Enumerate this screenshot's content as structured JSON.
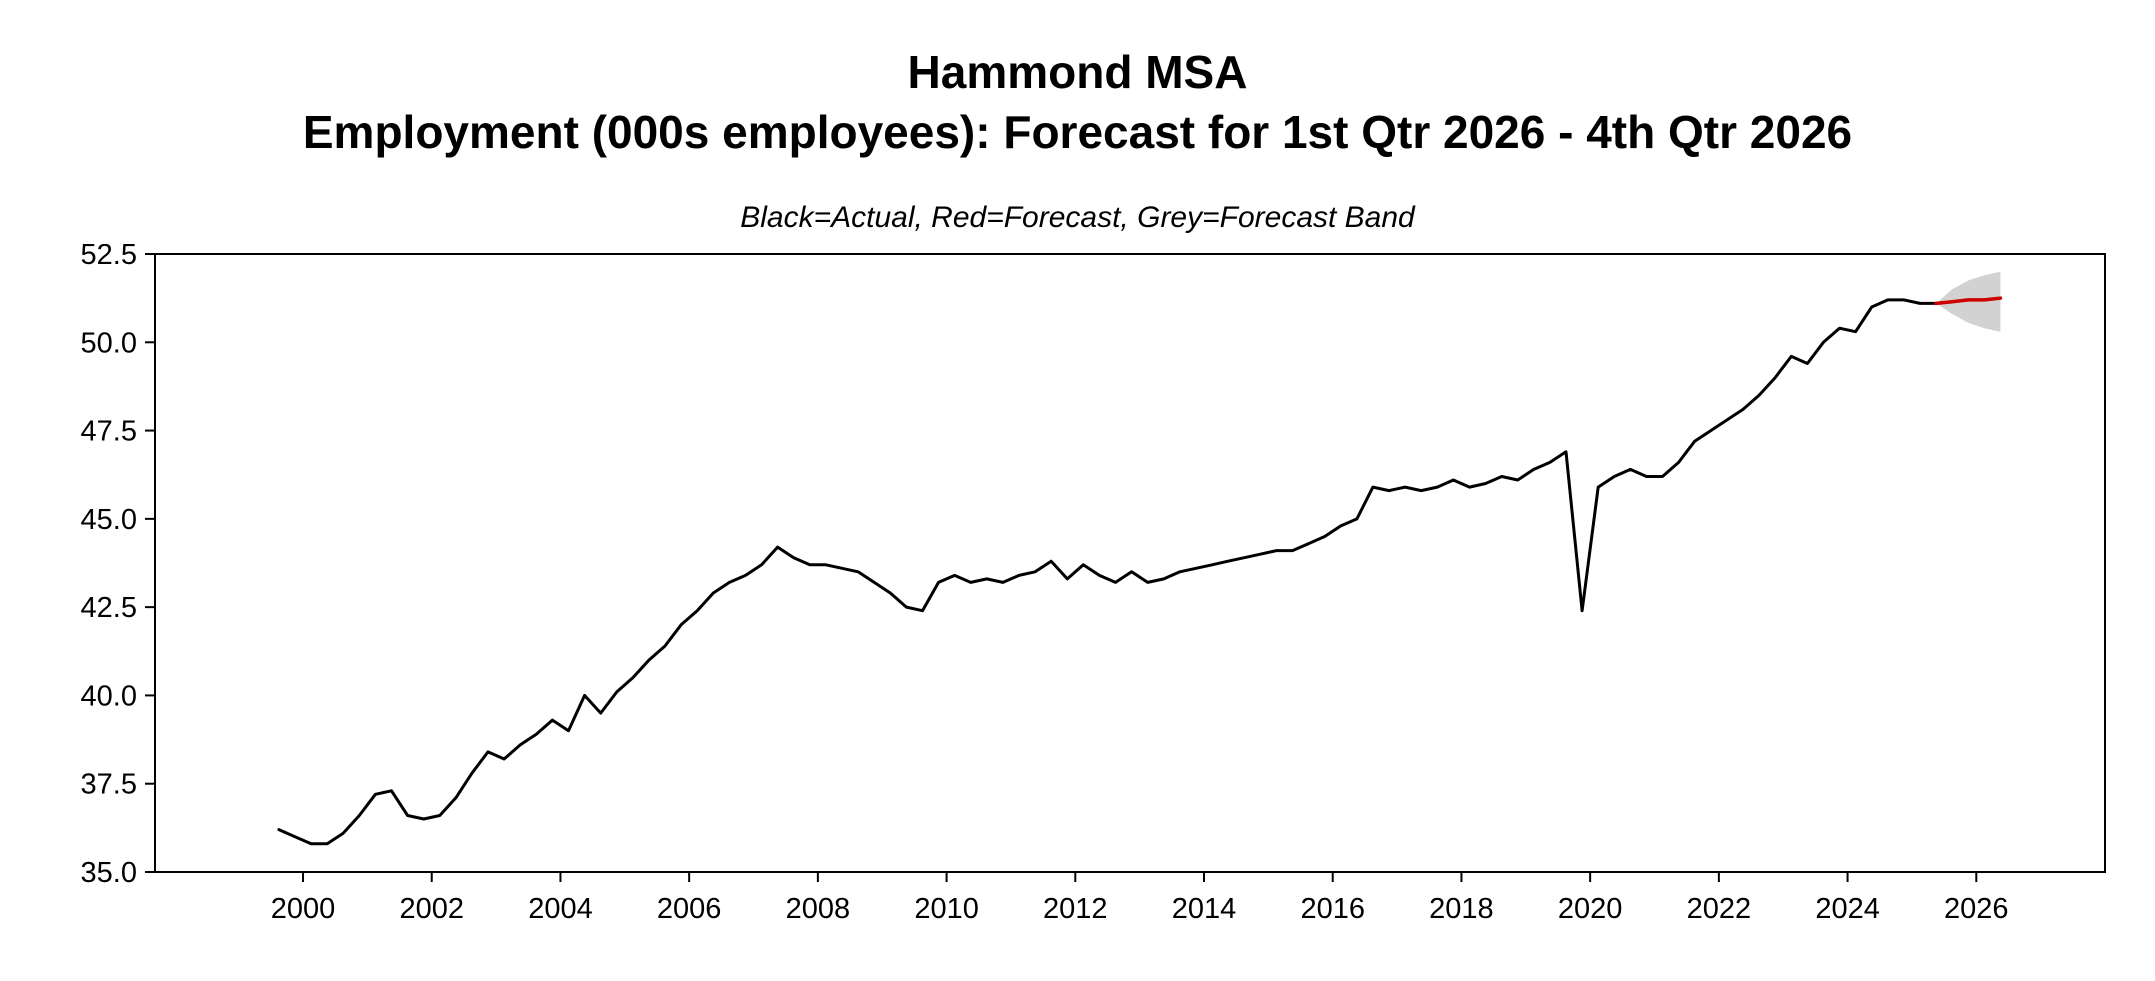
{
  "chart_data": {
    "type": "line",
    "title_line1": "Hammond MSA",
    "title_line2": "Employment (000s employees): Forecast for 1st Qtr 2026 - 4th Qtr 2026",
    "subtitle": "Black=Actual, Red=Forecast, Grey=Forecast Band",
    "xlabel": "",
    "ylabel": "",
    "ylim": [
      35.0,
      52.5
    ],
    "yticks": [
      35.0,
      37.5,
      40.0,
      42.5,
      45.0,
      47.5,
      50.0,
      52.5
    ],
    "xlim": [
      1998.2,
      2028.5
    ],
    "xticks": [
      2000,
      2002,
      2004,
      2006,
      2008,
      2010,
      2012,
      2014,
      2016,
      2018,
      2020,
      2022,
      2024,
      2026
    ],
    "xtick_offset": 0.5,
    "grid": false,
    "legend_position": "subtitle-note",
    "colors": {
      "actual": "#000000",
      "forecast": "#cc0000",
      "band": "#d2d2d2",
      "axis": "#000000"
    },
    "actual": {
      "name": "Actual",
      "frequency": "quarterly",
      "start_year": 2000,
      "values": [
        36.2,
        36.0,
        35.8,
        35.8,
        36.1,
        36.6,
        37.2,
        37.3,
        36.6,
        36.5,
        36.6,
        37.1,
        37.8,
        38.4,
        38.2,
        38.6,
        38.9,
        39.3,
        39.0,
        40.0,
        39.5,
        40.1,
        40.5,
        41.0,
        41.4,
        42.0,
        42.4,
        42.9,
        43.2,
        43.4,
        43.7,
        44.2,
        43.9,
        43.7,
        43.7,
        43.6,
        43.5,
        43.2,
        42.9,
        42.5,
        42.4,
        43.2,
        43.4,
        43.2,
        43.3,
        43.2,
        43.4,
        43.5,
        43.8,
        43.3,
        43.7,
        43.4,
        43.2,
        43.5,
        43.2,
        43.3,
        43.5,
        43.6,
        43.7,
        43.8,
        43.9,
        44.0,
        44.1,
        44.1,
        44.3,
        44.5,
        44.8,
        45.0,
        45.9,
        45.8,
        45.9,
        45.8,
        45.9,
        46.1,
        45.9,
        46.0,
        46.2,
        46.1,
        46.4,
        46.6,
        46.9,
        42.4,
        45.9,
        46.2,
        46.4,
        46.2,
        46.2,
        46.6,
        47.2,
        47.5,
        47.8,
        48.1,
        48.5,
        49.0,
        49.6,
        49.4,
        50.0,
        50.4,
        50.3,
        51.0,
        51.2,
        51.2,
        51.1,
        51.1
      ]
    },
    "forecast": {
      "name": "Forecast",
      "frequency": "quarterly",
      "start_year": 2026,
      "values": [
        51.15,
        51.2,
        51.2,
        51.25
      ]
    },
    "band": {
      "name": "Forecast Band",
      "frequency": "quarterly",
      "start_year": 2026,
      "lower": [
        50.8,
        50.55,
        50.4,
        50.3
      ],
      "upper": [
        51.5,
        51.75,
        51.9,
        52.0
      ]
    }
  }
}
